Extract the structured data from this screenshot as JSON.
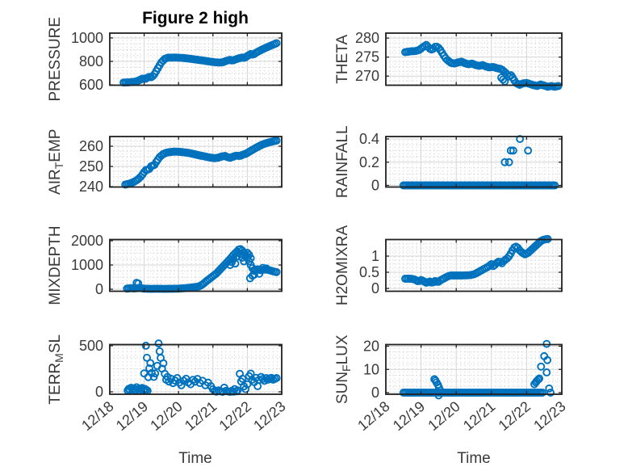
{
  "figure": {
    "title": "Figure 2 high",
    "xlabel": "Time",
    "background": "#ffffff",
    "accent_color": "#0072BD",
    "axis_color": "#212121",
    "grid_color": "#d4d4d4",
    "minor_grid_color": "#c9c9c9",
    "tick_text_color": "#3a3a3a",
    "x_axis": {
      "lim": [
        0,
        5
      ],
      "tick_labels": [
        "12/18",
        "12/19",
        "12/20",
        "12/21",
        "12/22",
        "12/23"
      ],
      "minor_divisions": 8
    },
    "marker": {
      "radius": 4.0,
      "stroke_width": 1.9,
      "interp_step_days": 0.05
    }
  },
  "chart_data": [
    {
      "id": "pressure",
      "type": "scatter",
      "grid_pos": {
        "row": 0,
        "col": 0
      },
      "ylabel_parts": [
        {
          "t": "PRESSURE",
          "sub": false
        }
      ],
      "yticks": [
        600,
        800,
        1000
      ],
      "ytick_labels": [
        "600",
        "800",
        "1000"
      ],
      "ylim": [
        597,
        1041
      ],
      "trend": {
        "x": [
          0.4,
          0.55,
          0.7,
          0.8,
          0.9,
          0.97,
          1.03,
          1.1,
          1.15,
          1.22,
          1.3,
          1.4,
          1.5,
          1.6,
          1.7,
          1.9,
          2.1,
          2.3,
          2.5,
          2.7,
          2.9,
          3.05,
          3.2,
          3.3,
          3.4,
          3.5,
          3.57,
          3.65,
          3.75,
          3.85,
          3.92,
          4.0,
          4.1,
          4.17,
          4.27,
          4.37,
          4.47,
          4.57,
          4.67,
          4.77,
          4.87
        ],
        "y": [
          620,
          622,
          626,
          633,
          646,
          656,
          649,
          662,
          668,
          664,
          692,
          742,
          792,
          822,
          832,
          833,
          830,
          824,
          816,
          808,
          799,
          793,
          790,
          794,
          806,
          813,
          806,
          816,
          826,
          833,
          829,
          846,
          863,
          856,
          877,
          892,
          907,
          920,
          933,
          945,
          958
        ]
      },
      "points": []
    },
    {
      "id": "theta",
      "type": "scatter",
      "grid_pos": {
        "row": 0,
        "col": 1
      },
      "ylabel_parts": [
        {
          "t": "THETA",
          "sub": false
        }
      ],
      "yticks": [
        270,
        275,
        280
      ],
      "ytick_labels": [
        "270",
        "275",
        "280"
      ],
      "ylim": [
        267.6,
        281.3
      ],
      "trend": {
        "x": [
          0.55,
          0.7,
          0.85,
          0.95,
          1.05,
          1.15,
          1.25,
          1.32,
          1.42,
          1.52,
          1.6,
          1.67,
          1.75,
          1.85,
          1.95,
          2.05,
          2.15,
          2.25,
          2.35,
          2.45,
          2.55,
          2.65,
          2.75,
          2.85,
          2.95,
          3.05,
          3.15,
          3.25,
          3.32,
          3.42,
          3.5,
          3.56,
          3.62,
          3.7,
          3.8,
          3.9,
          4.0,
          4.1,
          4.2,
          4.3,
          4.4,
          4.5,
          4.6,
          4.7,
          4.8,
          4.9
        ],
        "y": [
          276.3,
          276.5,
          276.6,
          276.9,
          277.6,
          278.2,
          277.2,
          276.9,
          277.9,
          277.3,
          276.1,
          275.0,
          274.2,
          273.5,
          273.3,
          273.6,
          273.8,
          273.4,
          273.1,
          273.3,
          272.9,
          272.7,
          272.9,
          272.5,
          272.3,
          272.4,
          272.1,
          271.9,
          271.6,
          270.7,
          269.9,
          270.3,
          269.3,
          268.2,
          267.7,
          268.1,
          268.2,
          267.9,
          267.6,
          267.4,
          267.8,
          267.5,
          267.2,
          267.4,
          267.2,
          267.4
        ]
      },
      "points": [
        [
          3.28,
          269.6
        ],
        [
          3.33,
          269.1
        ],
        [
          3.38,
          268.6
        ],
        [
          3.5,
          269.9
        ],
        [
          3.56,
          270.2
        ]
      ]
    },
    {
      "id": "air_temp",
      "type": "scatter",
      "grid_pos": {
        "row": 1,
        "col": 0
      },
      "ylabel_parts": [
        {
          "t": "AIR",
          "sub": false
        },
        {
          "t": "T",
          "sub": true
        },
        {
          "t": "EMP",
          "sub": false
        }
      ],
      "yticks": [
        240,
        250,
        260
      ],
      "ytick_labels": [
        "240",
        "250",
        "260"
      ],
      "ylim": [
        239.8,
        264.8
      ],
      "trend": {
        "x": [
          0.45,
          0.6,
          0.72,
          0.82,
          0.92,
          1.0,
          1.07,
          1.13,
          1.22,
          1.28,
          1.35,
          1.45,
          1.55,
          1.65,
          1.75,
          1.85,
          1.95,
          2.05,
          2.15,
          2.25,
          2.35,
          2.45,
          2.55,
          2.65,
          2.75,
          2.85,
          2.95,
          3.05,
          3.15,
          3.25,
          3.35,
          3.42,
          3.5,
          3.6,
          3.68,
          3.78,
          3.88,
          3.95,
          4.05,
          4.15,
          4.25,
          4.35,
          4.45,
          4.55,
          4.65,
          4.75,
          4.85
        ],
        "y": [
          241.0,
          241.6,
          242.5,
          243.6,
          245.2,
          247.2,
          248.6,
          248.2,
          250.6,
          250.2,
          252.2,
          254.6,
          256.1,
          256.8,
          257.1,
          257.3,
          257.3,
          257.2,
          257.0,
          256.8,
          256.5,
          256.1,
          255.7,
          255.3,
          255.0,
          254.6,
          254.3,
          254.1,
          254.3,
          254.9,
          255.2,
          254.6,
          254.3,
          254.9,
          255.4,
          255.1,
          255.9,
          256.2,
          257.2,
          258.2,
          259.2,
          260.1,
          260.9,
          261.5,
          262.0,
          262.4,
          262.8
        ]
      },
      "points": []
    },
    {
      "id": "rainfall",
      "type": "scatter",
      "grid_pos": {
        "row": 1,
        "col": 1
      },
      "ylabel_parts": [
        {
          "t": "RAINFALL",
          "sub": false
        }
      ],
      "yticks": [
        0,
        0.2,
        0.4
      ],
      "ytick_labels": [
        "0",
        "0.2",
        "0.4"
      ],
      "ylim": [
        -0.014,
        0.421
      ],
      "trend": {
        "x": [
          0.5,
          4.8
        ],
        "y": [
          0,
          0
        ]
      },
      "points": [
        [
          3.38,
          0.2
        ],
        [
          3.5,
          0.2
        ],
        [
          3.55,
          0.3
        ],
        [
          3.62,
          0.3
        ],
        [
          3.81,
          0.4
        ],
        [
          4.04,
          0.3
        ]
      ]
    },
    {
      "id": "mixdepth",
      "type": "scatter",
      "grid_pos": {
        "row": 2,
        "col": 0
      },
      "ylabel_parts": [
        {
          "t": "MIXDEPTH",
          "sub": false
        }
      ],
      "yticks": [
        0,
        1000,
        2000
      ],
      "ytick_labels": [
        "0",
        "1000",
        "2000"
      ],
      "ylim": [
        -83,
        2050
      ],
      "trend": {
        "x": [
          0.5,
          0.62,
          0.72,
          0.85,
          1.0,
          1.2,
          1.4,
          1.6,
          1.8,
          2.0,
          2.2,
          2.35,
          2.5,
          2.6,
          2.7,
          2.8,
          2.9,
          3.0,
          3.1,
          3.2,
          3.3,
          3.4,
          3.5,
          3.6,
          3.7,
          3.78,
          3.85,
          3.92,
          4.0,
          4.05,
          4.1,
          4.15,
          4.2,
          4.3,
          4.4,
          4.5,
          4.6,
          4.7,
          4.8,
          4.88
        ],
        "y": [
          25,
          45,
          30,
          55,
          25,
          15,
          20,
          15,
          20,
          25,
          45,
          65,
          95,
          120,
          200,
          320,
          430,
          540,
          650,
          800,
          950,
          1100,
          1250,
          1420,
          1560,
          1680,
          1600,
          1480,
          1300,
          1150,
          1000,
          870,
          760,
          820,
          780,
          820,
          800,
          760,
          720,
          700
        ]
      },
      "points": [
        [
          0.78,
          265
        ],
        [
          0.83,
          235
        ],
        [
          3.5,
          1000
        ],
        [
          3.55,
          1120
        ],
        [
          3.6,
          1250
        ],
        [
          3.65,
          1060
        ],
        [
          3.7,
          1350
        ],
        [
          3.75,
          1500
        ],
        [
          3.8,
          1450
        ],
        [
          3.85,
          1300
        ],
        [
          3.9,
          1150
        ],
        [
          3.95,
          1350
        ],
        [
          4.0,
          1500
        ],
        [
          4.05,
          1420
        ],
        [
          4.1,
          1280
        ],
        [
          4.08,
          450
        ],
        [
          4.15,
          560
        ],
        [
          4.2,
          600
        ],
        [
          4.35,
          640
        ],
        [
          4.45,
          880
        ],
        [
          4.55,
          860
        ]
      ]
    },
    {
      "id": "h2omixra",
      "type": "scatter",
      "grid_pos": {
        "row": 2,
        "col": 1
      },
      "ylabel_parts": [
        {
          "t": "H2OMIXRA",
          "sub": false
        }
      ],
      "yticks": [
        0,
        0.5,
        1
      ],
      "ytick_labels": [
        "0",
        "0.5",
        "1"
      ],
      "ylim": [
        -0.0875,
        1.5125
      ],
      "trend": {
        "x": [
          0.55,
          0.7,
          0.82,
          0.92,
          1.0,
          1.08,
          1.16,
          1.24,
          1.32,
          1.4,
          1.48,
          1.56,
          1.64,
          1.72,
          1.82,
          1.95,
          2.15,
          2.4,
          2.52,
          2.62,
          2.72,
          2.82,
          2.92,
          3.0,
          3.06,
          3.14,
          3.22,
          3.3,
          3.36,
          3.44,
          3.52,
          3.6,
          3.66,
          3.72,
          3.8,
          3.88,
          3.96,
          4.04,
          4.12,
          4.22,
          4.32,
          4.42,
          4.52,
          4.62
        ],
        "y": [
          0.3,
          0.3,
          0.28,
          0.21,
          0.26,
          0.22,
          0.17,
          0.22,
          0.17,
          0.23,
          0.19,
          0.26,
          0.3,
          0.35,
          0.4,
          0.4,
          0.4,
          0.41,
          0.44,
          0.5,
          0.56,
          0.62,
          0.68,
          0.75,
          0.68,
          0.78,
          0.84,
          0.78,
          0.86,
          0.92,
          1.02,
          1.18,
          1.28,
          1.3,
          1.18,
          1.1,
          1.05,
          1.1,
          1.18,
          1.28,
          1.38,
          1.48,
          1.52,
          1.53
        ]
      },
      "points": []
    },
    {
      "id": "terr_msl",
      "type": "scatter",
      "grid_pos": {
        "row": 3,
        "col": 0
      },
      "ylabel_parts": [
        {
          "t": "TERR",
          "sub": false
        },
        {
          "t": "M",
          "sub": true
        },
        {
          "t": "SL",
          "sub": false
        }
      ],
      "yticks": [
        0,
        500
      ],
      "ytick_labels": [
        "0",
        "500"
      ],
      "ylim": [
        -26,
        513
      ],
      "trend": null,
      "points": [
        [
          0.52,
          15
        ],
        [
          0.55,
          32
        ],
        [
          0.58,
          20
        ],
        [
          0.62,
          45
        ],
        [
          0.66,
          25
        ],
        [
          0.7,
          38
        ],
        [
          0.74,
          18
        ],
        [
          0.78,
          50
        ],
        [
          0.82,
          30
        ],
        [
          0.86,
          12
        ],
        [
          0.9,
          28
        ],
        [
          0.94,
          42
        ],
        [
          0.98,
          18
        ],
        [
          1.02,
          32
        ],
        [
          1.06,
          22
        ],
        [
          1.1,
          12
        ],
        [
          1.0,
          200
        ],
        [
          1.05,
          500
        ],
        [
          1.08,
          370
        ],
        [
          1.12,
          160
        ],
        [
          1.15,
          255
        ],
        [
          1.18,
          312
        ],
        [
          1.22,
          205
        ],
        [
          1.28,
          162
        ],
        [
          1.32,
          200
        ],
        [
          1.38,
          282
        ],
        [
          1.42,
          525
        ],
        [
          1.45,
          440
        ],
        [
          1.48,
          368
        ],
        [
          1.52,
          252
        ],
        [
          1.56,
          310
        ],
        [
          1.6,
          196
        ],
        [
          1.64,
          132
        ],
        [
          1.68,
          162
        ],
        [
          1.72,
          112
        ],
        [
          1.78,
          142
        ],
        [
          1.84,
          95
        ],
        [
          1.9,
          122
        ],
        [
          1.96,
          150
        ],
        [
          2.02,
          100
        ],
        [
          2.08,
          72
        ],
        [
          2.15,
          120
        ],
        [
          2.22,
          142
        ],
        [
          2.28,
          102
        ],
        [
          2.35,
          82
        ],
        [
          2.42,
          130
        ],
        [
          2.48,
          112
        ],
        [
          2.55,
          140
        ],
        [
          2.62,
          96
        ],
        [
          2.7,
          120
        ],
        [
          2.78,
          72
        ],
        [
          2.86,
          100
        ],
        [
          2.94,
          62
        ],
        [
          3.0,
          28
        ],
        [
          3.05,
          10
        ],
        [
          3.1,
          2
        ],
        [
          3.16,
          16
        ],
        [
          3.22,
          6
        ],
        [
          3.28,
          0
        ],
        [
          3.33,
          46
        ],
        [
          3.38,
          12
        ],
        [
          3.44,
          4
        ],
        [
          3.5,
          0
        ],
        [
          3.55,
          12
        ],
        [
          3.6,
          2
        ],
        [
          3.63,
          30
        ],
        [
          3.68,
          6
        ],
        [
          3.72,
          16
        ],
        [
          3.78,
          196
        ],
        [
          3.82,
          112
        ],
        [
          3.86,
          142
        ],
        [
          3.9,
          60
        ],
        [
          3.95,
          30
        ],
        [
          4.0,
          82
        ],
        [
          4.05,
          170
        ],
        [
          4.1,
          198
        ],
        [
          4.14,
          132
        ],
        [
          4.2,
          106
        ],
        [
          4.25,
          152
        ],
        [
          4.3,
          62
        ],
        [
          4.34,
          130
        ],
        [
          4.4,
          162
        ],
        [
          4.45,
          140
        ],
        [
          4.5,
          120
        ],
        [
          4.55,
          150
        ],
        [
          4.6,
          132
        ],
        [
          4.65,
          146
        ],
        [
          4.7,
          152
        ],
        [
          4.75,
          132
        ],
        [
          4.8,
          142
        ],
        [
          4.85,
          150
        ]
      ]
    },
    {
      "id": "sun_flux",
      "type": "scatter",
      "grid_pos": {
        "row": 3,
        "col": 1
      },
      "ylabel_parts": [
        {
          "t": "SUN",
          "sub": false
        },
        {
          "t": "F",
          "sub": true
        },
        {
          "t": "LUX",
          "sub": false
        }
      ],
      "yticks": [
        0,
        10,
        20
      ],
      "ytick_labels": [
        "0",
        "10",
        "20"
      ],
      "ylim": [
        -0.7,
        20.7
      ],
      "trend": {
        "x": [
          0.5,
          4.45
        ],
        "y": [
          0,
          0
        ]
      },
      "points": [
        [
          1.38,
          5.8
        ],
        [
          1.41,
          5.2
        ],
        [
          1.44,
          4.4
        ],
        [
          1.48,
          3.4
        ],
        [
          1.51,
          2.2
        ],
        [
          1.5,
          -1.2
        ],
        [
          1.55,
          0.9
        ],
        [
          4.22,
          3.6
        ],
        [
          4.26,
          4.4
        ],
        [
          4.29,
          5.0
        ],
        [
          4.33,
          5.6
        ],
        [
          4.36,
          6.1
        ],
        [
          4.41,
          11.2
        ],
        [
          4.5,
          15.7
        ],
        [
          4.57,
          21.0
        ],
        [
          4.57,
          8.7
        ],
        [
          4.59,
          14.0
        ],
        [
          4.64,
          1.8
        ],
        [
          4.68,
          0
        ]
      ]
    }
  ]
}
